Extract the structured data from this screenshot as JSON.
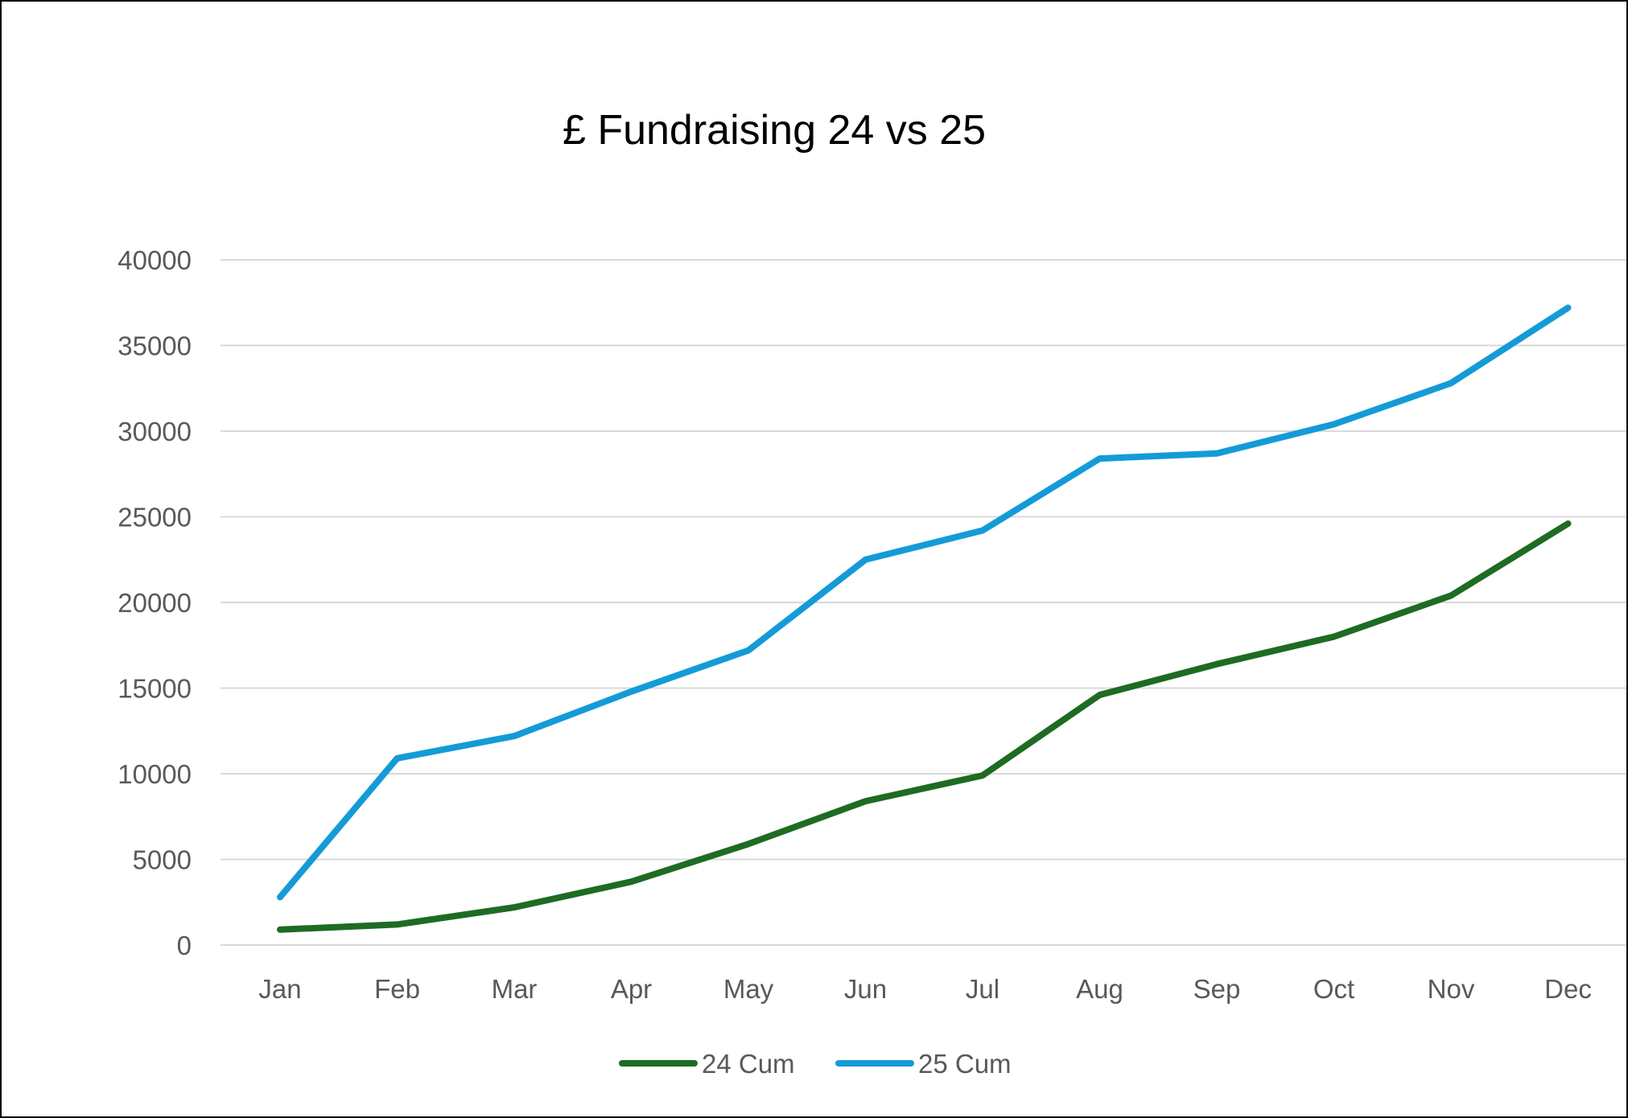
{
  "chart_data": {
    "type": "line",
    "title": "£ Fundraising 24 vs 25",
    "xlabel": "",
    "ylabel": "",
    "categories": [
      "Jan",
      "Feb",
      "Mar",
      "Apr",
      "May",
      "Jun",
      "Jul",
      "Aug",
      "Sep",
      "Oct",
      "Nov",
      "Dec"
    ],
    "ylim": [
      0,
      40000
    ],
    "yticks": [
      "0",
      "5000",
      "10000",
      "15000",
      "20000",
      "25000",
      "30000",
      "35000",
      "40000"
    ],
    "grid": true,
    "legend_position": "bottom",
    "series": [
      {
        "name": "24 Cum",
        "color": "#1e6b24",
        "values": [
          900,
          1200,
          2200,
          3700,
          5900,
          8400,
          9900,
          14600,
          16400,
          18000,
          20400,
          24600
        ]
      },
      {
        "name": "25 Cum",
        "color": "#149bd7",
        "values": [
          2800,
          10900,
          12200,
          14800,
          17200,
          22500,
          24200,
          28400,
          28700,
          30400,
          32800,
          37200
        ]
      }
    ]
  }
}
